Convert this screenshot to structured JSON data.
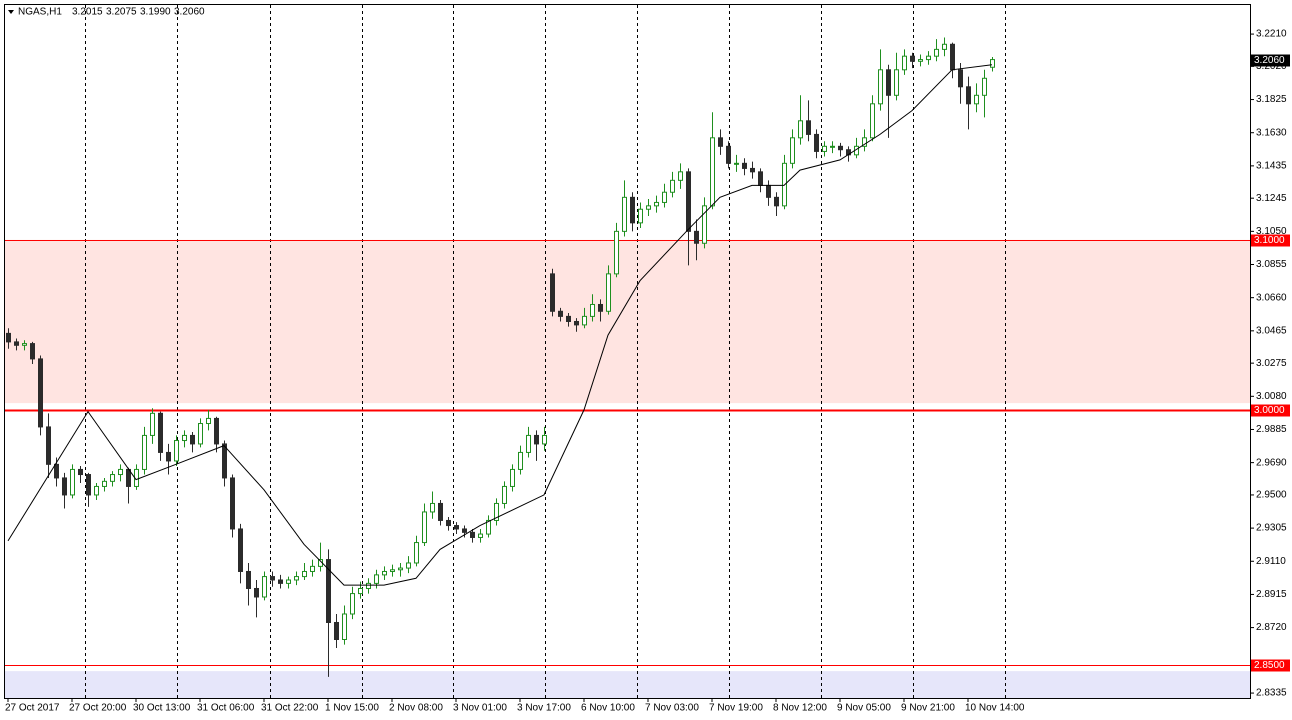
{
  "chart_data": {
    "type": "candlestick",
    "symbol": "NGAS,H1",
    "header_values": [
      3.2015,
      3.2075,
      3.199,
      3.206
    ],
    "header_labels": [
      "3.2015",
      "3.2075",
      "3.1990",
      "3.2060"
    ],
    "bull_color": "#1f8f1f",
    "bear_color": "#2b2b2b",
    "ma_color": "#000000",
    "ylim": [
      2.8306,
      3.2381
    ],
    "xlim": [
      -0.375,
      155.25
    ],
    "yticks": [
      {
        "value": 3.221,
        "label": "3.2210"
      },
      {
        "value": 3.202,
        "label": "3.2020"
      },
      {
        "value": 3.1825,
        "label": "3.1825"
      },
      {
        "value": 3.163,
        "label": "3.1630"
      },
      {
        "value": 3.1435,
        "label": "3.1435"
      },
      {
        "value": 3.1245,
        "label": "3.1245"
      },
      {
        "value": 3.105,
        "label": "3.1050"
      },
      {
        "value": 3.0855,
        "label": "3.0855"
      },
      {
        "value": 3.066,
        "label": "3.0660"
      },
      {
        "value": 3.0465,
        "label": "3.0465"
      },
      {
        "value": 3.0275,
        "label": "3.0275"
      },
      {
        "value": 3.008,
        "label": "3.0080"
      },
      {
        "value": 2.9885,
        "label": "2.9885"
      },
      {
        "value": 2.969,
        "label": "2.9690"
      },
      {
        "value": 2.95,
        "label": "2.9500"
      },
      {
        "value": 2.9305,
        "label": "2.9305"
      },
      {
        "value": 2.911,
        "label": "2.9110"
      },
      {
        "value": 2.8915,
        "label": "2.8915"
      },
      {
        "value": 2.872,
        "label": "2.8720"
      },
      {
        "value": 2.8335,
        "label": "2.8335"
      }
    ],
    "xticks": [
      {
        "value": 0,
        "label": "27 Oct 2017"
      },
      {
        "value": 8,
        "label": "27 Oct 20:00"
      },
      {
        "value": 16,
        "label": "30 Oct 13:00"
      },
      {
        "value": 24,
        "label": "31 Oct 06:00"
      },
      {
        "value": 32,
        "label": "31 Oct 22:00"
      },
      {
        "value": 40,
        "label": "1 Nov 15:00"
      },
      {
        "value": 48,
        "label": "2 Nov 08:00"
      },
      {
        "value": 56,
        "label": "3 Nov 01:00"
      },
      {
        "value": 64,
        "label": "3 Nov 17:00"
      },
      {
        "value": 72,
        "label": "6 Nov 10:00"
      },
      {
        "value": 80,
        "label": "7 Nov 03:00"
      },
      {
        "value": 88,
        "label": "7 Nov 19:00"
      },
      {
        "value": 96,
        "label": "8 Nov 12:00"
      },
      {
        "value": 104,
        "label": "9 Nov 05:00"
      },
      {
        "value": 112,
        "label": "9 Nov 21:00"
      },
      {
        "value": 120,
        "label": "10 Nov 14:00"
      }
    ],
    "separators": [
      9.6,
      21.1,
      32.75,
      44.25,
      55.6,
      67.1,
      78.6,
      90.1,
      101.6,
      113.1,
      124.6
    ],
    "zones": [
      {
        "from": 3.1,
        "to": 3.004,
        "color": "#ffe4e1"
      },
      {
        "from": 2.8464,
        "to": 2.8306,
        "color": "#e6e6fa"
      }
    ],
    "levels": [
      {
        "value": 3.1,
        "label": "3.1000",
        "color": "#ff0000"
      },
      {
        "value": 3.0,
        "label": "3.0000",
        "color": "#ff0000"
      },
      {
        "value": 2.85,
        "label": "2.8500",
        "color": "#ff0000"
      }
    ],
    "current_price": {
      "value": 3.206,
      "label": "3.2060"
    },
    "ma": {
      "x": [
        0,
        10,
        16,
        21,
        27,
        32,
        37,
        42,
        47,
        51,
        54,
        59,
        67,
        72,
        75,
        79,
        85,
        89,
        93,
        97,
        99,
        104,
        109,
        113,
        118,
        123
      ],
      "values": [
        2.923,
        2.999,
        2.959,
        2.968,
        2.979,
        2.953,
        2.921,
        2.897,
        2.897,
        2.901,
        2.918,
        2.932,
        2.95,
        3.0,
        3.044,
        3.076,
        3.106,
        3.125,
        3.132,
        3.132,
        3.141,
        3.147,
        3.162,
        3.176,
        3.2,
        3.203
      ]
    },
    "candles": [
      [
        3.045,
        3.048,
        3.036,
        3.04
      ],
      [
        3.04,
        3.042,
        3.035,
        3.038
      ],
      [
        3.038,
        3.041,
        3.035,
        3.039
      ],
      [
        3.039,
        3.04,
        3.027,
        3.03
      ],
      [
        3.03,
        3.032,
        2.985,
        2.99
      ],
      [
        2.99,
        2.998,
        2.96,
        2.968
      ],
      [
        2.968,
        2.972,
        2.955,
        2.96
      ],
      [
        2.96,
        2.963,
        2.942,
        2.95
      ],
      [
        2.95,
        2.968,
        2.948,
        2.965
      ],
      [
        2.965,
        2.967,
        2.957,
        2.962
      ],
      [
        2.962,
        2.963,
        2.943,
        2.95
      ],
      [
        2.95,
        2.957,
        2.947,
        2.955
      ],
      [
        2.955,
        2.96,
        2.952,
        2.958
      ],
      [
        2.958,
        2.964,
        2.955,
        2.962
      ],
      [
        2.962,
        2.968,
        2.958,
        2.965
      ],
      [
        2.965,
        2.966,
        2.945,
        2.955
      ],
      [
        2.955,
        2.968,
        2.953,
        2.965
      ],
      [
        2.965,
        2.99,
        2.962,
        2.985
      ],
      [
        2.985,
        3.001,
        2.98,
        2.998
      ],
      [
        2.998,
        2.999,
        2.97,
        2.975
      ],
      [
        2.975,
        2.98,
        2.962,
        2.97
      ],
      [
        2.97,
        2.985,
        2.967,
        2.982
      ],
      [
        2.982,
        2.988,
        2.978,
        2.985
      ],
      [
        2.985,
        2.987,
        2.975,
        2.98
      ],
      [
        2.98,
        2.995,
        2.978,
        2.992
      ],
      [
        2.992,
        3.0,
        2.988,
        2.995
      ],
      [
        2.995,
        2.996,
        2.975,
        2.98
      ],
      [
        2.98,
        2.982,
        2.955,
        2.96
      ],
      [
        2.96,
        2.962,
        2.925,
        2.93
      ],
      [
        2.93,
        2.933,
        2.898,
        2.905
      ],
      [
        2.905,
        2.91,
        2.885,
        2.895
      ],
      [
        2.895,
        2.9,
        2.878,
        2.89
      ],
      [
        2.89,
        2.905,
        2.888,
        2.902
      ],
      [
        2.902,
        2.905,
        2.896,
        2.9
      ],
      [
        2.9,
        2.903,
        2.895,
        2.898
      ],
      [
        2.898,
        2.902,
        2.895,
        2.9
      ],
      [
        2.9,
        2.905,
        2.897,
        2.902
      ],
      [
        2.902,
        2.91,
        2.9,
        2.905
      ],
      [
        2.905,
        2.912,
        2.902,
        2.908
      ],
      [
        2.908,
        2.922,
        2.905,
        2.912
      ],
      [
        2.912,
        2.918,
        2.843,
        2.875
      ],
      [
        2.875,
        2.88,
        2.86,
        2.865
      ],
      [
        2.865,
        2.885,
        2.862,
        2.88
      ],
      [
        2.88,
        2.896,
        2.877,
        2.892
      ],
      [
        2.892,
        2.899,
        2.889,
        2.895
      ],
      [
        2.895,
        2.901,
        2.892,
        2.898
      ],
      [
        2.898,
        2.906,
        2.895,
        2.903
      ],
      [
        2.903,
        2.908,
        2.9,
        2.905
      ],
      [
        2.905,
        2.909,
        2.902,
        2.906
      ],
      [
        2.906,
        2.91,
        2.902,
        2.907
      ],
      [
        2.907,
        2.914,
        2.904,
        2.91
      ],
      [
        2.91,
        2.926,
        2.908,
        2.922
      ],
      [
        2.922,
        2.945,
        2.92,
        2.94
      ],
      [
        2.94,
        2.952,
        2.936,
        2.945
      ],
      [
        2.945,
        2.947,
        2.932,
        2.935
      ],
      [
        2.935,
        2.937,
        2.929,
        2.932
      ],
      [
        2.932,
        2.934,
        2.927,
        2.93
      ],
      [
        2.93,
        2.932,
        2.925,
        2.928
      ],
      [
        2.928,
        2.93,
        2.922,
        2.925
      ],
      [
        2.925,
        2.93,
        2.922,
        2.927
      ],
      [
        2.927,
        2.938,
        2.925,
        2.935
      ],
      [
        2.935,
        2.948,
        2.932,
        2.945
      ],
      [
        2.945,
        2.958,
        2.942,
        2.955
      ],
      [
        2.955,
        2.968,
        2.952,
        2.965
      ],
      [
        2.965,
        2.979,
        2.962,
        2.975
      ],
      [
        2.975,
        2.99,
        2.972,
        2.985
      ],
      [
        2.985,
        2.988,
        2.97,
        2.98
      ],
      [
        2.98,
        2.99,
        2.976,
        2.985
      ],
      [
        3.08,
        3.083,
        3.055,
        3.058
      ],
      [
        3.058,
        3.06,
        3.052,
        3.055
      ],
      [
        3.055,
        3.057,
        3.049,
        3.052
      ],
      [
        3.052,
        3.054,
        3.046,
        3.05
      ],
      [
        3.05,
        3.06,
        3.048,
        3.055
      ],
      [
        3.055,
        3.068,
        3.052,
        3.062
      ],
      [
        3.062,
        3.065,
        3.052,
        3.058
      ],
      [
        3.058,
        3.085,
        3.056,
        3.08
      ],
      [
        3.08,
        3.11,
        3.078,
        3.105
      ],
      [
        3.105,
        3.135,
        3.102,
        3.125
      ],
      [
        3.125,
        3.128,
        3.105,
        3.11
      ],
      [
        3.11,
        3.122,
        3.107,
        3.118
      ],
      [
        3.118,
        3.124,
        3.114,
        3.12
      ],
      [
        3.12,
        3.126,
        3.116,
        3.122
      ],
      [
        3.122,
        3.133,
        3.119,
        3.128
      ],
      [
        3.128,
        3.14,
        3.125,
        3.135
      ],
      [
        3.135,
        3.145,
        3.13,
        3.14
      ],
      [
        3.14,
        3.142,
        3.085,
        3.105
      ],
      [
        3.105,
        3.112,
        3.088,
        3.098
      ],
      [
        3.098,
        3.125,
        3.095,
        3.12
      ],
      [
        3.12,
        3.175,
        3.118,
        3.16
      ],
      [
        3.16,
        3.165,
        3.15,
        3.155
      ],
      [
        3.155,
        3.158,
        3.142,
        3.145
      ],
      [
        3.145,
        3.15,
        3.14,
        3.145
      ],
      [
        3.145,
        3.148,
        3.138,
        3.142
      ],
      [
        3.142,
        3.146,
        3.136,
        3.14
      ],
      [
        3.14,
        3.142,
        3.128,
        3.132
      ],
      [
        3.132,
        3.135,
        3.12,
        3.125
      ],
      [
        3.125,
        3.128,
        3.114,
        3.12
      ],
      [
        3.12,
        3.15,
        3.118,
        3.145
      ],
      [
        3.145,
        3.165,
        3.142,
        3.16
      ],
      [
        3.16,
        3.185,
        3.156,
        3.17
      ],
      [
        3.17,
        3.182,
        3.158,
        3.162
      ],
      [
        3.162,
        3.165,
        3.148,
        3.152
      ],
      [
        3.152,
        3.158,
        3.149,
        3.155
      ],
      [
        3.155,
        3.158,
        3.151,
        3.155
      ],
      [
        3.155,
        3.157,
        3.149,
        3.153
      ],
      [
        3.153,
        3.155,
        3.146,
        3.15
      ],
      [
        3.15,
        3.16,
        3.148,
        3.155
      ],
      [
        3.155,
        3.165,
        3.152,
        3.16
      ],
      [
        3.16,
        3.185,
        3.158,
        3.18
      ],
      [
        3.18,
        3.212,
        3.176,
        3.2
      ],
      [
        3.2,
        3.203,
        3.16,
        3.185
      ],
      [
        3.185,
        3.21,
        3.182,
        3.2
      ],
      [
        3.2,
        3.212,
        3.197,
        3.208
      ],
      [
        3.208,
        3.21,
        3.201,
        3.205
      ],
      [
        3.205,
        3.209,
        3.202,
        3.206
      ],
      [
        3.206,
        3.211,
        3.203,
        3.208
      ],
      [
        3.208,
        3.218,
        3.205,
        3.212
      ],
      [
        3.212,
        3.219,
        3.208,
        3.215
      ],
      [
        3.215,
        3.216,
        3.195,
        3.2
      ],
      [
        3.2,
        3.204,
        3.18,
        3.19
      ],
      [
        3.19,
        3.196,
        3.165,
        3.18
      ],
      [
        3.18,
        3.192,
        3.175,
        3.185
      ],
      [
        3.185,
        3.2,
        3.172,
        3.195
      ],
      [
        3.2015,
        3.2075,
        3.199,
        3.206
      ]
    ]
  }
}
